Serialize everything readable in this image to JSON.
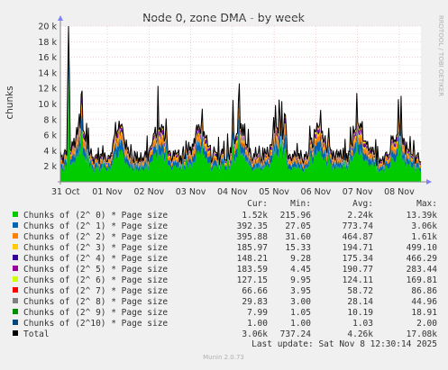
{
  "chart_data": {
    "type": "area",
    "title": "Node 0, zone DMA - by week",
    "ylabel": "chunks",
    "ylim": [
      0,
      20000
    ],
    "y_ticks": [
      {
        "value": 2000,
        "label": "2 k"
      },
      {
        "value": 4000,
        "label": "4 k"
      },
      {
        "value": 6000,
        "label": "6 k"
      },
      {
        "value": 8000,
        "label": "8 k"
      },
      {
        "value": 10000,
        "label": "10 k"
      },
      {
        "value": 12000,
        "label": "12 k"
      },
      {
        "value": 14000,
        "label": "14 k"
      },
      {
        "value": 16000,
        "label": "16 k"
      },
      {
        "value": 18000,
        "label": "18 k"
      },
      {
        "value": 20000,
        "label": "20 k"
      }
    ],
    "x_range": [
      "2025-10-30T21:00",
      "2025-11-08T12:30"
    ],
    "x_ticks": [
      {
        "value": "2025-10-31",
        "label": "31 Oct"
      },
      {
        "value": "2025-11-01",
        "label": "01 Nov"
      },
      {
        "value": "2025-11-02",
        "label": "02 Nov"
      },
      {
        "value": "2025-11-03",
        "label": "03 Nov"
      },
      {
        "value": "2025-11-04",
        "label": "04 Nov"
      },
      {
        "value": "2025-11-05",
        "label": "05 Nov"
      },
      {
        "value": "2025-11-06",
        "label": "06 Nov"
      },
      {
        "value": "2025-11-07",
        "label": "07 Nov"
      },
      {
        "value": "2025-11-08",
        "label": "08 Nov"
      }
    ],
    "grid": true,
    "legend_position": "bottom",
    "columns": {
      "cur": "Cur:",
      "min": "Min:",
      "avg": "Avg:",
      "max": "Max:"
    },
    "series": [
      {
        "name": "Chunks of (2^ 0) * Page size",
        "color": "#00cc00",
        "cur": "1.52k",
        "min": "215.96",
        "avg": "2.24k",
        "max": "13.39k"
      },
      {
        "name": "Chunks of (2^ 1) * Page size",
        "color": "#0066b3",
        "cur": "392.35",
        "min": "27.05",
        "avg": "773.74",
        "max": "3.06k"
      },
      {
        "name": "Chunks of (2^ 2) * Page size",
        "color": "#ff8000",
        "cur": "395.88",
        "min": "31.60",
        "avg": "464.87",
        "max": "1.61k"
      },
      {
        "name": "Chunks of (2^ 3) * Page size",
        "color": "#ffcc00",
        "cur": "185.97",
        "min": "15.33",
        "avg": "194.71",
        "max": "499.10"
      },
      {
        "name": "Chunks of (2^ 4) * Page size",
        "color": "#330099",
        "cur": "148.21",
        "min": "9.28",
        "avg": "175.34",
        "max": "466.29"
      },
      {
        "name": "Chunks of (2^ 5) * Page size",
        "color": "#990099",
        "cur": "183.59",
        "min": "4.45",
        "avg": "190.77",
        "max": "283.44"
      },
      {
        "name": "Chunks of (2^ 6) * Page size",
        "color": "#ccff00",
        "cur": "127.15",
        "min": "9.95",
        "avg": "124.11",
        "max": "169.81"
      },
      {
        "name": "Chunks of (2^ 7) * Page size",
        "color": "#ff0000",
        "cur": "66.66",
        "min": "3.95",
        "avg": "58.72",
        "max": "86.86"
      },
      {
        "name": "Chunks of (2^ 8) * Page size",
        "color": "#808080",
        "cur": "29.83",
        "min": "3.00",
        "avg": "28.14",
        "max": "44.96"
      },
      {
        "name": "Chunks of (2^ 9) * Page size",
        "color": "#008f00",
        "cur": "7.99",
        "min": "1.05",
        "avg": "10.19",
        "max": "18.91"
      },
      {
        "name": "Chunks of (2^10) * Page size",
        "color": "#00487d",
        "cur": "1.00",
        "min": "1.00",
        "avg": "1.03",
        "max": "2.00"
      }
    ],
    "total": {
      "name": "Total",
      "color": "#000000",
      "cur": "3.06k",
      "min": "737.24",
      "avg": "4.26k",
      "max": "17.08k"
    },
    "last_update": "Last update:  Sat Nov  8 12:30:14 2025",
    "watermark": "RRDTOOL / TOBI OETIKER",
    "footer": "Munin 2.0.73"
  }
}
